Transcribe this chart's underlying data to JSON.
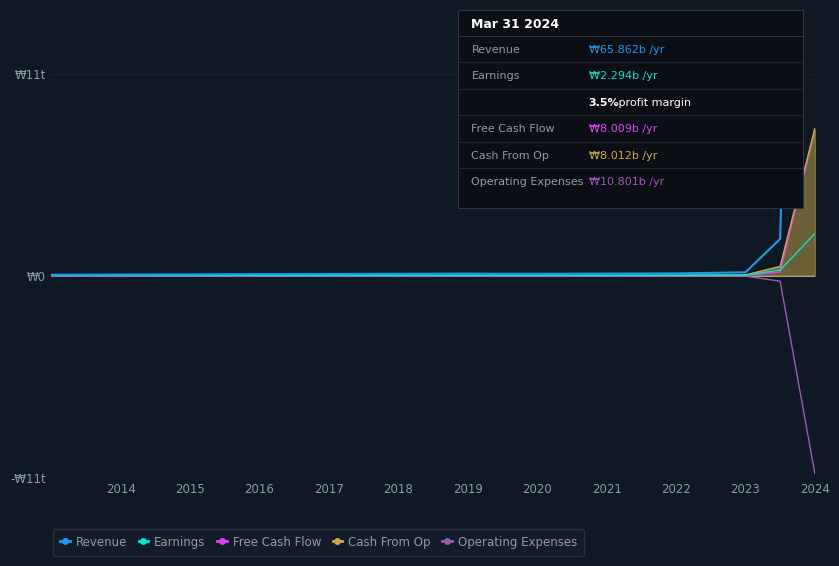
{
  "background_color": "#0f1923",
  "plot_bg_color": "#0f1923",
  "grid_color": "#2a3040",
  "text_color": "#8a9bb0",
  "years": [
    2013,
    2014,
    2015,
    2016,
    2017,
    2018,
    2019,
    2019.5,
    2020,
    2021,
    2022,
    2023,
    2023.5,
    2024
  ],
  "revenue": [
    0.05,
    0.06,
    0.07,
    0.08,
    0.09,
    0.1,
    0.11,
    0.1,
    0.1,
    0.11,
    0.12,
    0.18,
    2.0,
    65.862
  ],
  "earnings": [
    0.01,
    0.01,
    0.01,
    0.01,
    0.01,
    0.01,
    0.01,
    0.01,
    0.01,
    0.01,
    0.01,
    0.02,
    0.3,
    2.294
  ],
  "free_cash_flow": [
    0.01,
    0.01,
    0.01,
    0.01,
    0.01,
    0.01,
    0.01,
    0.01,
    0.01,
    0.01,
    0.01,
    0.01,
    0.2,
    8.009
  ],
  "cash_from_op": [
    0.02,
    0.02,
    0.02,
    0.03,
    0.03,
    0.03,
    0.03,
    0.03,
    0.03,
    0.03,
    0.03,
    0.04,
    0.5,
    8.012
  ],
  "op_expenses": [
    -0.02,
    -0.02,
    -0.02,
    -0.02,
    -0.02,
    -0.02,
    -0.02,
    -0.02,
    -0.02,
    -0.02,
    -0.02,
    -0.03,
    -0.3,
    -10.801
  ],
  "revenue_color": "#1e9be8",
  "earnings_color": "#00e5cc",
  "free_cash_flow_color": "#e040fb",
  "cash_from_op_color": "#c8a84b",
  "op_expenses_color": "#9b59b6",
  "ylim_min": -11,
  "ylim_max": 11,
  "yticks": [
    -11,
    0,
    11
  ],
  "ytick_labels": [
    "-₩11t",
    "₩0",
    "₩11t"
  ],
  "xlabel_years": [
    "2014",
    "2015",
    "2016",
    "2017",
    "2018",
    "2019",
    "2020",
    "2021",
    "2022",
    "2023",
    "2024"
  ],
  "legend_labels": [
    "Revenue",
    "Earnings",
    "Free Cash Flow",
    "Cash From Op",
    "Operating Expenses"
  ],
  "legend_colors": [
    "#1e9be8",
    "#00e5cc",
    "#e040fb",
    "#c8a84b",
    "#9b59b6"
  ],
  "tooltip_title": "Mar 31 2024",
  "tooltip_rows": [
    {
      "label": "Revenue",
      "value": "₩65.862b /yr",
      "color": "#1e9be8",
      "is_label": true
    },
    {
      "label": "Earnings",
      "value": "₩2.294b /yr",
      "color": "#00e5cc",
      "is_label": true
    },
    {
      "label": "",
      "value": "3.5% profit margin",
      "color": "#ffffff",
      "is_label": false
    },
    {
      "label": "Free Cash Flow",
      "value": "₩8.009b /yr",
      "color": "#e040fb",
      "is_label": true
    },
    {
      "label": "Cash From Op",
      "value": "₩8.012b /yr",
      "color": "#c8a84b",
      "is_label": true
    },
    {
      "label": "Operating Expenses",
      "value": "₩10.801b /yr",
      "color": "#9b59b6",
      "is_label": true
    }
  ]
}
